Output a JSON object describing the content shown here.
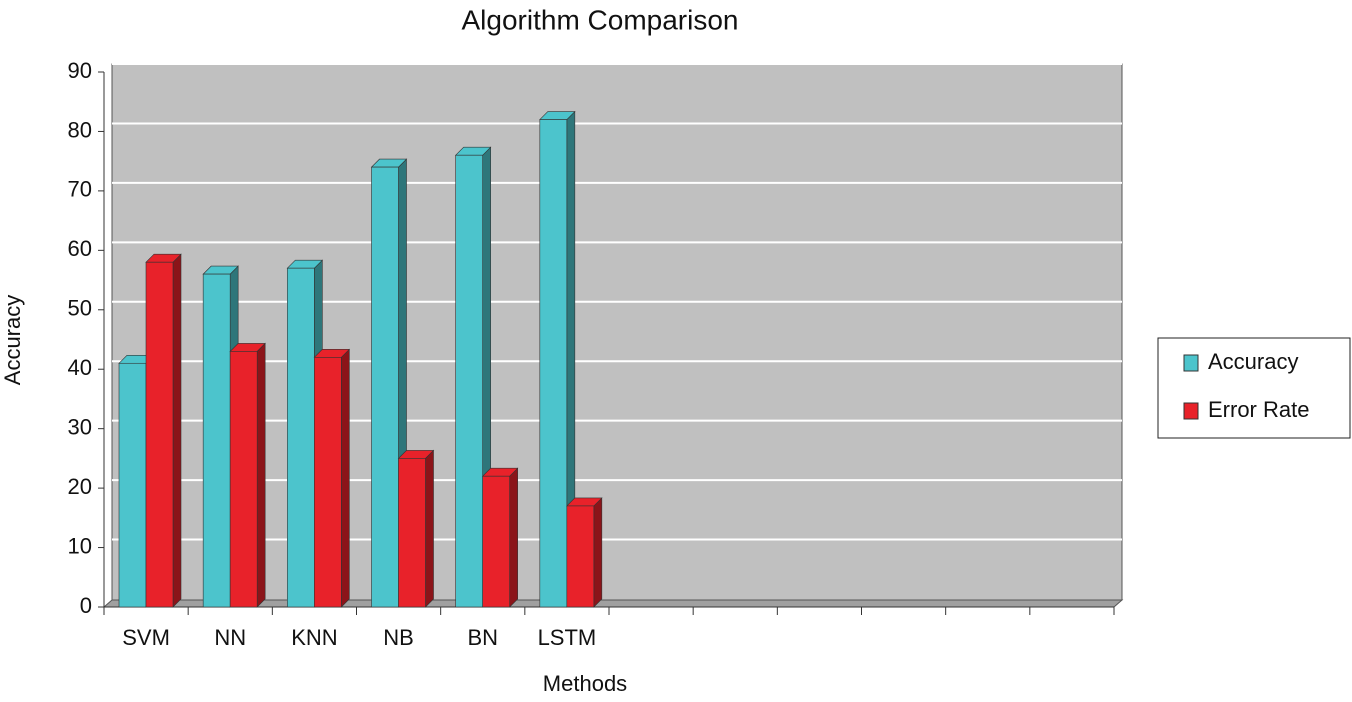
{
  "chart_data": {
    "type": "bar3d",
    "title": "Algorithm Comparison",
    "x_label": "Methods",
    "y_label": "Accuracy",
    "categories": [
      "SVM",
      "NN",
      "KNN",
      "NB",
      "BN",
      "LSTM",
      null,
      null,
      null,
      null,
      null,
      null
    ],
    "series": [
      {
        "name": "Accuracy",
        "color": "#4cc4cc",
        "values": [
          41,
          56,
          57,
          74,
          76,
          82,
          null,
          null,
          null,
          null,
          null,
          null
        ]
      },
      {
        "name": "Error Rate",
        "color": "#e8222a",
        "values": [
          58,
          43,
          42,
          25,
          22,
          17,
          null,
          null,
          null,
          null,
          null,
          null
        ]
      }
    ],
    "ylim": [
      0,
      90
    ],
    "yticks": [
      0,
      10,
      20,
      30,
      40,
      50,
      60,
      70,
      80,
      90
    ],
    "grid": true,
    "legend": "right"
  }
}
